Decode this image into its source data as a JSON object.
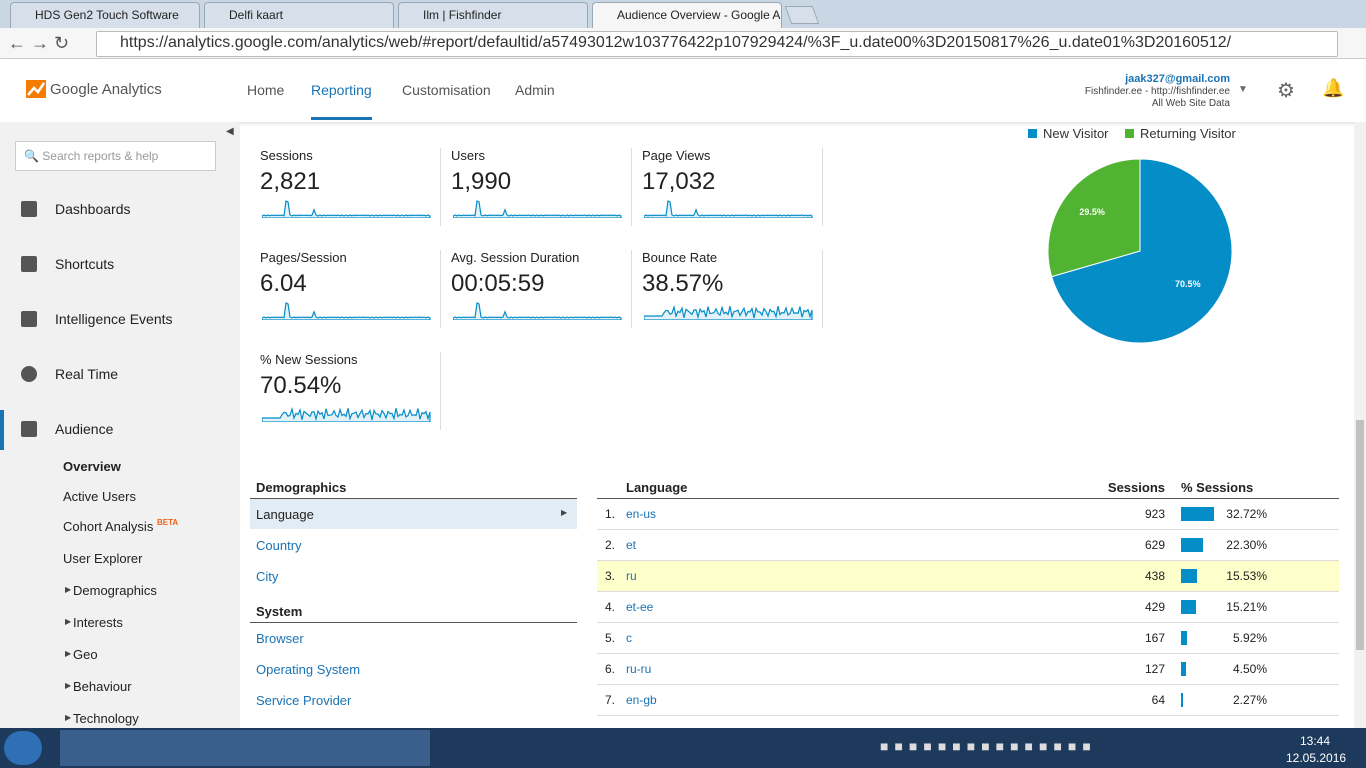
{
  "browser": {
    "tabs": [
      "HDS Gen2 Touch Software",
      "Delfi kaart",
      "Ilm | Fishfinder",
      "Audience Overview - Google Analytics"
    ],
    "url": "https://analytics.google.com/analytics/web/#report/defaultid/a57493012w103776422p107929424/%3F_u.date00%3D20150817%26_u.date01%3D20160512/"
  },
  "header": {
    "logo": "Google Analytics",
    "nav": [
      "Home",
      "Reporting",
      "Customisation",
      "Admin"
    ],
    "account": {
      "email": "jaak327@gmail.com",
      "property": "Fishfinder.ee - http://fishfinder.ee",
      "view": "All Web Site Data"
    }
  },
  "sidebar": {
    "search": "Search reports & help",
    "items": [
      "Dashboards",
      "Shortcuts",
      "Intelligence Events",
      "Real Time",
      "Audience"
    ],
    "subitems": [
      "Overview",
      "Active Users",
      "Cohort Analysis",
      "User Explorer",
      "Demographics",
      "Interests",
      "Geo",
      "Behaviour",
      "Technology"
    ],
    "beta": "BETA"
  },
  "metrics": [
    {
      "label": "Sessions",
      "value": "2,821"
    },
    {
      "label": "Users",
      "value": "1,990"
    },
    {
      "label": "Page Views",
      "value": "17,032"
    },
    {
      "label": "Pages/Session",
      "value": "6.04"
    },
    {
      "label": "Avg. Session Duration",
      "value": "00:05:59"
    },
    {
      "label": "Bounce Rate",
      "value": "38.57%"
    },
    {
      "label": "% New Sessions",
      "value": "70.54%"
    }
  ],
  "pie": {
    "type": "pie",
    "series": [
      {
        "name": "New Visitor",
        "color": "#058dc7",
        "values": [
          70.5
        ],
        "value_labels": [
          "70.5%"
        ]
      },
      {
        "name": "Returning Visitor",
        "color": "#50b432",
        "values": [
          29.5
        ],
        "value_labels": [
          "29.5%"
        ]
      }
    ]
  },
  "demographics": {
    "title": "Demographics",
    "items": [
      "Language",
      "Country",
      "City"
    ],
    "system_title": "System",
    "system_items": [
      "Browser",
      "Operating System",
      "Service Provider"
    ]
  },
  "table": {
    "headers": [
      "Language",
      "Sessions",
      "% Sessions"
    ],
    "rows": [
      {
        "rank": "1.",
        "language": "en-us",
        "sessions": 923,
        "percent": 32.72,
        "percent_label": "32.72%"
      },
      {
        "rank": "2.",
        "language": "et",
        "sessions": 629,
        "percent": 22.3,
        "percent_label": "22.30%"
      },
      {
        "rank": "3.",
        "language": "ru",
        "sessions": 438,
        "percent": 15.53,
        "percent_label": "15.53%"
      },
      {
        "rank": "4.",
        "language": "et-ee",
        "sessions": 429,
        "percent": 15.21,
        "percent_label": "15.21%"
      },
      {
        "rank": "5.",
        "language": "c",
        "sessions": 167,
        "percent": 5.92,
        "percent_label": "5.92%"
      },
      {
        "rank": "6.",
        "language": "ru-ru",
        "sessions": 127,
        "percent": 4.5,
        "percent_label": "4.50%"
      },
      {
        "rank": "7.",
        "language": "en-gb",
        "sessions": 64,
        "percent": 2.27,
        "percent_label": "2.27%"
      }
    ]
  },
  "taskbar": {
    "time": "13:44",
    "date": "12.05.2016"
  }
}
